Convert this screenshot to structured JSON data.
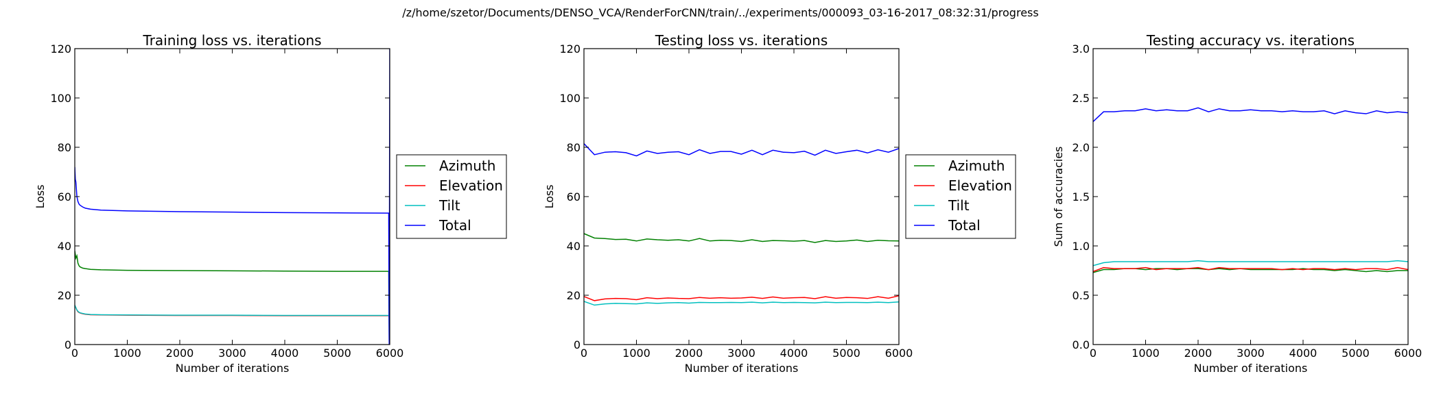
{
  "figure_title": "/z/home/szetor/Documents/DENSO_VCA/RenderForCNN/train/../experiments/000093_03-16-2017_08:32:31/progress",
  "colors": {
    "Azimuth": "#008000",
    "Elevation": "#ff0000",
    "Tilt": "#00bfbf",
    "Total": "#0000ff"
  },
  "chart_data": [
    {
      "type": "line",
      "title": "Training loss vs. iterations",
      "xlabel": "Number of iterations",
      "ylabel": "Loss",
      "xlim": [
        0,
        6000
      ],
      "ylim": [
        0,
        120
      ],
      "xticks": [
        0,
        1000,
        2000,
        3000,
        4000,
        5000,
        6000
      ],
      "yticks": [
        0,
        20,
        40,
        60,
        80,
        100,
        120
      ],
      "legend": "outside-right",
      "series": [
        {
          "name": "Azimuth",
          "x": [
            0,
            20,
            40,
            60,
            80,
            100,
            150,
            200,
            300,
            500,
            1000,
            2000,
            3000,
            4000,
            5000,
            5980,
            5990,
            6000
          ],
          "y": [
            38,
            35,
            36,
            33,
            32,
            31.5,
            31,
            30.8,
            30.5,
            30.3,
            30.1,
            30.0,
            29.9,
            29.8,
            29.7,
            29.7,
            0,
            45
          ]
        },
        {
          "name": "Elevation",
          "x": [
            0,
            20,
            40,
            60,
            80,
            100,
            150,
            200,
            300,
            500,
            1000,
            2000,
            3000,
            4000,
            5000,
            6000
          ],
          "y": [
            15.5,
            15,
            14,
            13.3,
            13,
            12.8,
            12.5,
            12.3,
            12.1,
            12.0,
            11.9,
            11.8,
            11.8,
            11.7,
            11.7,
            11.7
          ]
        },
        {
          "name": "Tilt",
          "x": [
            0,
            20,
            40,
            60,
            80,
            100,
            150,
            200,
            300,
            500,
            1000,
            2000,
            3000,
            4000,
            5000,
            6000
          ],
          "y": [
            16,
            15,
            14,
            13.5,
            13.1,
            12.9,
            12.6,
            12.4,
            12.2,
            12.1,
            12.0,
            11.9,
            11.9,
            11.8,
            11.8,
            11.8
          ]
        },
        {
          "name": "Total",
          "x": [
            0,
            10,
            20,
            30,
            40,
            60,
            80,
            100,
            150,
            200,
            300,
            500,
            1000,
            2000,
            3000,
            4000,
            5000,
            5980,
            5990,
            6000
          ],
          "y": [
            72,
            67,
            66,
            63,
            60,
            58,
            57,
            56.5,
            55.8,
            55.3,
            54.9,
            54.5,
            54.2,
            53.9,
            53.7,
            53.5,
            53.4,
            53.3,
            0,
            120
          ]
        }
      ]
    },
    {
      "type": "line",
      "title": "Testing loss vs. iterations",
      "xlabel": "Number of iterations",
      "ylabel": "Loss",
      "xlim": [
        0,
        6000
      ],
      "ylim": [
        0,
        120
      ],
      "xticks": [
        0,
        1000,
        2000,
        3000,
        4000,
        5000,
        6000
      ],
      "yticks": [
        0,
        20,
        40,
        60,
        80,
        100,
        120
      ],
      "legend": "outside-right",
      "series": [
        {
          "name": "Azimuth",
          "x": [
            0,
            200,
            400,
            600,
            800,
            1000,
            1200,
            1400,
            1600,
            1800,
            2000,
            2200,
            2400,
            2600,
            2800,
            3000,
            3200,
            3400,
            3600,
            3800,
            4000,
            4200,
            4400,
            4600,
            4800,
            5000,
            5200,
            5400,
            5600,
            5800,
            6000
          ],
          "y": [
            45,
            43.2,
            43.0,
            42.6,
            42.7,
            42.0,
            42.8,
            42.5,
            42.3,
            42.5,
            42.0,
            43.0,
            42.0,
            42.3,
            42.2,
            41.8,
            42.5,
            41.8,
            42.2,
            42.1,
            41.9,
            42.2,
            41.4,
            42.2,
            41.8,
            42.0,
            42.4,
            41.8,
            42.3,
            42.1,
            42.0
          ]
        },
        {
          "name": "Elevation",
          "x": [
            0,
            200,
            400,
            600,
            800,
            1000,
            1200,
            1400,
            1600,
            1800,
            2000,
            2200,
            2400,
            2600,
            2800,
            3000,
            3200,
            3400,
            3600,
            3800,
            4000,
            4200,
            4400,
            4600,
            4800,
            5000,
            5200,
            5400,
            5600,
            5800,
            6000
          ],
          "y": [
            19.5,
            17.8,
            18.5,
            18.7,
            18.6,
            18.2,
            19.0,
            18.6,
            18.9,
            18.7,
            18.6,
            19.1,
            18.8,
            19.0,
            18.8,
            18.9,
            19.2,
            18.7,
            19.3,
            18.8,
            19.0,
            19.1,
            18.6,
            19.4,
            18.8,
            19.1,
            19.0,
            18.7,
            19.4,
            18.8,
            19.8
          ]
        },
        {
          "name": "Tilt",
          "x": [
            0,
            200,
            400,
            600,
            800,
            1000,
            1200,
            1400,
            1600,
            1800,
            2000,
            2200,
            2400,
            2600,
            2800,
            3000,
            3200,
            3400,
            3600,
            3800,
            4000,
            4200,
            4400,
            4600,
            4800,
            5000,
            5200,
            5400,
            5600,
            5800,
            6000
          ],
          "y": [
            17.5,
            16.0,
            16.5,
            16.7,
            16.6,
            16.5,
            16.9,
            16.7,
            16.9,
            17.0,
            16.8,
            17.1,
            17.0,
            17.0,
            17.1,
            17.0,
            17.2,
            16.9,
            17.2,
            17.0,
            17.1,
            17.0,
            16.9,
            17.2,
            17.0,
            17.1,
            17.1,
            17.0,
            17.2,
            17.0,
            17.3
          ]
        },
        {
          "name": "Total",
          "x": [
            0,
            200,
            400,
            600,
            800,
            1000,
            1200,
            1400,
            1600,
            1800,
            2000,
            2200,
            2400,
            2600,
            2800,
            3000,
            3200,
            3400,
            3600,
            3800,
            4000,
            4200,
            4400,
            4600,
            4800,
            5000,
            5200,
            5400,
            5600,
            5800,
            6000
          ],
          "y": [
            81.5,
            77.0,
            78.0,
            78.2,
            77.8,
            76.5,
            78.5,
            77.5,
            78.0,
            78.2,
            77.0,
            79.0,
            77.5,
            78.3,
            78.3,
            77.2,
            78.8,
            77.0,
            78.8,
            78.0,
            77.8,
            78.4,
            76.8,
            78.8,
            77.5,
            78.2,
            78.8,
            77.7,
            79.0,
            78.0,
            79.5
          ]
        }
      ]
    },
    {
      "type": "line",
      "title": "Testing accuracy vs. iterations",
      "xlabel": "Number of iterations",
      "ylabel": "Sum of accuracies",
      "xlim": [
        0,
        6000
      ],
      "ylim": [
        0.0,
        3.0
      ],
      "xticks": [
        0,
        1000,
        2000,
        3000,
        4000,
        5000,
        6000
      ],
      "yticks": [
        0.0,
        0.5,
        1.0,
        1.5,
        2.0,
        2.5,
        3.0
      ],
      "legend": "none",
      "series": [
        {
          "name": "Azimuth",
          "x": [
            0,
            200,
            400,
            600,
            800,
            1000,
            1200,
            1400,
            1600,
            1800,
            2000,
            2200,
            2400,
            2600,
            2800,
            3000,
            3200,
            3400,
            3600,
            3800,
            4000,
            4200,
            4400,
            4600,
            4800,
            5000,
            5200,
            5400,
            5600,
            5800,
            6000
          ],
          "y": [
            0.73,
            0.76,
            0.76,
            0.77,
            0.77,
            0.76,
            0.77,
            0.77,
            0.76,
            0.77,
            0.77,
            0.76,
            0.77,
            0.76,
            0.77,
            0.76,
            0.76,
            0.76,
            0.76,
            0.76,
            0.77,
            0.76,
            0.76,
            0.75,
            0.76,
            0.75,
            0.74,
            0.75,
            0.74,
            0.75,
            0.75
          ]
        },
        {
          "name": "Elevation",
          "x": [
            0,
            200,
            400,
            600,
            800,
            1000,
            1200,
            1400,
            1600,
            1800,
            2000,
            2200,
            2400,
            2600,
            2800,
            3000,
            3200,
            3400,
            3600,
            3800,
            4000,
            4200,
            4400,
            4600,
            4800,
            5000,
            5200,
            5400,
            5600,
            5800,
            6000
          ],
          "y": [
            0.74,
            0.78,
            0.77,
            0.77,
            0.77,
            0.78,
            0.76,
            0.77,
            0.77,
            0.77,
            0.78,
            0.76,
            0.78,
            0.77,
            0.77,
            0.77,
            0.77,
            0.77,
            0.76,
            0.77,
            0.76,
            0.77,
            0.77,
            0.76,
            0.77,
            0.76,
            0.77,
            0.77,
            0.76,
            0.78,
            0.76
          ]
        },
        {
          "name": "Tilt",
          "x": [
            0,
            200,
            400,
            600,
            800,
            1000,
            1200,
            1400,
            1600,
            1800,
            2000,
            2200,
            2400,
            2600,
            2800,
            3000,
            3200,
            3400,
            3600,
            3800,
            4000,
            4200,
            4400,
            4600,
            4800,
            5000,
            5200,
            5400,
            5600,
            5800,
            6000
          ],
          "y": [
            0.8,
            0.83,
            0.84,
            0.84,
            0.84,
            0.84,
            0.84,
            0.84,
            0.84,
            0.84,
            0.85,
            0.84,
            0.84,
            0.84,
            0.84,
            0.84,
            0.84,
            0.84,
            0.84,
            0.84,
            0.84,
            0.84,
            0.84,
            0.84,
            0.84,
            0.84,
            0.84,
            0.84,
            0.84,
            0.85,
            0.84
          ]
        },
        {
          "name": "Total",
          "x": [
            0,
            200,
            400,
            600,
            800,
            1000,
            1200,
            1400,
            1600,
            1800,
            2000,
            2200,
            2400,
            2600,
            2800,
            3000,
            3200,
            3400,
            3600,
            3800,
            4000,
            4200,
            4400,
            4600,
            4800,
            5000,
            5200,
            5400,
            5600,
            5800,
            6000
          ],
          "y": [
            2.26,
            2.36,
            2.36,
            2.37,
            2.37,
            2.39,
            2.37,
            2.38,
            2.37,
            2.37,
            2.4,
            2.36,
            2.39,
            2.37,
            2.37,
            2.38,
            2.37,
            2.37,
            2.36,
            2.37,
            2.36,
            2.36,
            2.37,
            2.34,
            2.37,
            2.35,
            2.34,
            2.37,
            2.35,
            2.36,
            2.35
          ]
        }
      ]
    }
  ]
}
